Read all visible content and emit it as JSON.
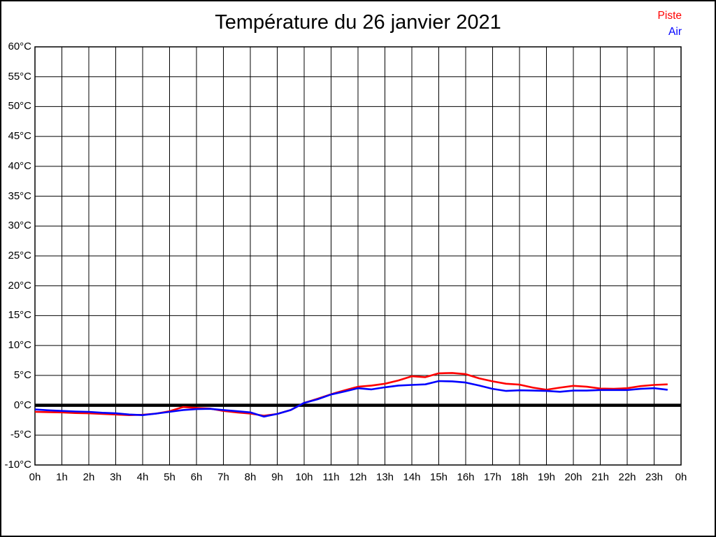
{
  "title": {
    "text": "Température du 26 janvier 2021"
  },
  "legend": {
    "position": "top-right",
    "items": [
      {
        "label": "Piste",
        "color": "#ff0000"
      },
      {
        "label": "Air",
        "color": "#0000ff"
      }
    ]
  },
  "colors": {
    "grid": "#000000",
    "border": "#000000",
    "zero_line": "#000000",
    "background": "#ffffff",
    "frame_border": "#000000"
  },
  "chart_data": {
    "type": "line",
    "title": "Température du 26 janvier 2021",
    "xlabel": "",
    "ylabel": "",
    "grid": "on",
    "legend_position": "top-right",
    "ylim": [
      -10,
      60
    ],
    "xlim_hours": [
      0,
      24
    ],
    "ytick_step": 5,
    "ytick_labels": [
      "60°C",
      "55°C",
      "50°C",
      "45°C",
      "40°C",
      "35°C",
      "30°C",
      "25°C",
      "20°C",
      "15°C",
      "10°C",
      "5°C",
      "0°C",
      "-5°C",
      "-10°C"
    ],
    "ytick_values": [
      60,
      55,
      50,
      45,
      40,
      35,
      30,
      25,
      20,
      15,
      10,
      5,
      0,
      -5,
      -10
    ],
    "xtick_labels": [
      "0h",
      "1h",
      "2h",
      "3h",
      "4h",
      "5h",
      "6h",
      "7h",
      "8h",
      "9h",
      "10h",
      "11h",
      "12h",
      "13h",
      "14h",
      "15h",
      "16h",
      "17h",
      "18h",
      "19h",
      "20h",
      "21h",
      "22h",
      "23h",
      "0h"
    ],
    "xtick_hours": [
      0,
      1,
      2,
      3,
      4,
      5,
      6,
      7,
      8,
      9,
      10,
      11,
      12,
      13,
      14,
      15,
      16,
      17,
      18,
      19,
      20,
      21,
      22,
      23,
      24
    ],
    "zero_line_value": 0,
    "x_hours": [
      0,
      0.5,
      1,
      1.5,
      2,
      2.5,
      3,
      3.5,
      4,
      4.5,
      5,
      5.5,
      6,
      6.5,
      7,
      7.5,
      8,
      8.5,
      9,
      9.5,
      10,
      10.5,
      11,
      11.5,
      12,
      12.5,
      13,
      13.5,
      14,
      14.5,
      15,
      15.5,
      16,
      16.5,
      17,
      17.5,
      18,
      18.5,
      19,
      19.5,
      20,
      20.5,
      21,
      21.5,
      22,
      22.5,
      23,
      23.5
    ],
    "series": [
      {
        "name": "Piste",
        "color": "#ff0000",
        "values": [
          -1.1,
          -1.15,
          -1.2,
          -1.3,
          -1.35,
          -1.45,
          -1.55,
          -1.65,
          -1.6,
          -1.4,
          -1.0,
          -0.3,
          -0.45,
          -0.55,
          -0.95,
          -1.2,
          -1.4,
          -1.75,
          -1.45,
          -0.8,
          0.4,
          1.1,
          1.85,
          2.5,
          3.1,
          3.3,
          3.6,
          4.15,
          4.85,
          4.7,
          5.35,
          5.4,
          5.2,
          4.5,
          4.0,
          3.6,
          3.45,
          2.95,
          2.6,
          2.95,
          3.25,
          3.1,
          2.8,
          2.75,
          2.85,
          3.2,
          3.4,
          3.5
        ]
      },
      {
        "name": "Air",
        "color": "#0000ff",
        "values": [
          -0.7,
          -0.85,
          -0.95,
          -1.05,
          -1.1,
          -1.25,
          -1.35,
          -1.55,
          -1.65,
          -1.4,
          -1.1,
          -0.8,
          -0.65,
          -0.6,
          -0.8,
          -1.0,
          -1.2,
          -1.9,
          -1.45,
          -0.8,
          0.4,
          1.0,
          1.8,
          2.3,
          2.85,
          2.65,
          3.0,
          3.3,
          3.4,
          3.5,
          4.05,
          4.0,
          3.8,
          3.3,
          2.75,
          2.4,
          2.5,
          2.45,
          2.4,
          2.25,
          2.45,
          2.45,
          2.55,
          2.55,
          2.55,
          2.75,
          2.85,
          2.6
        ]
      }
    ]
  }
}
